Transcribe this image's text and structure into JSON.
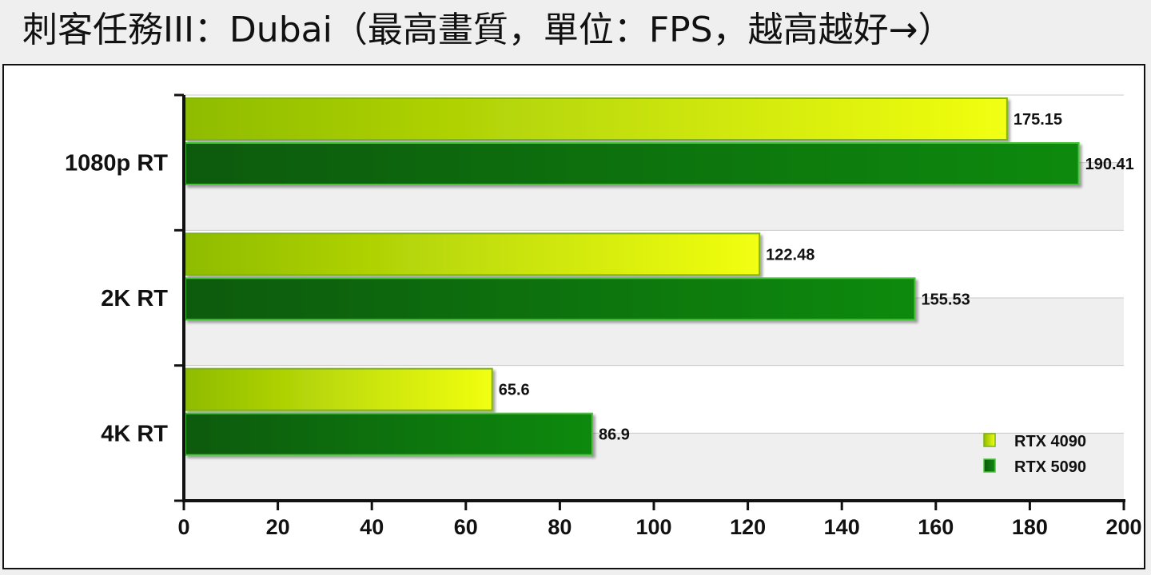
{
  "title": "刺客任務III：Dubai（最高畫質，單位：FPS，越高越好→）",
  "colors": {
    "rtx4090_start": "#8fbc00",
    "rtx4090_end": "#f2ff12",
    "rtx4090_border": "#7fb21a",
    "rtx5090_start": "#0a5a0a",
    "rtx5090_end": "#118a11",
    "rtx5090_border": "#4cc23a",
    "band": "#efefef",
    "grid": "#c8c8c8",
    "axis": "#111111"
  },
  "chart_data": {
    "type": "bar",
    "orientation": "horizontal",
    "title": "刺客任務III：Dubai（最高畫質，單位：FPS，越高越好→）",
    "categories": [
      "1080p RT",
      "2K RT",
      "4K RT"
    ],
    "series": [
      {
        "name": "RTX 4090",
        "values": [
          175.15,
          122.48,
          65.6
        ],
        "value_labels": [
          "175.15",
          "122.48",
          "65.6"
        ]
      },
      {
        "name": "RTX 5090",
        "values": [
          190.41,
          155.53,
          86.9
        ],
        "value_labels": [
          "190.41",
          "155.53",
          "86.9"
        ]
      }
    ],
    "xlim": [
      0,
      200
    ],
    "xticks": [
      "0",
      "20",
      "40",
      "60",
      "80",
      "100",
      "120",
      "140",
      "160",
      "180",
      "200"
    ],
    "xlabel": "",
    "ylabel": "",
    "grid": true,
    "legend": "bottom-right"
  }
}
